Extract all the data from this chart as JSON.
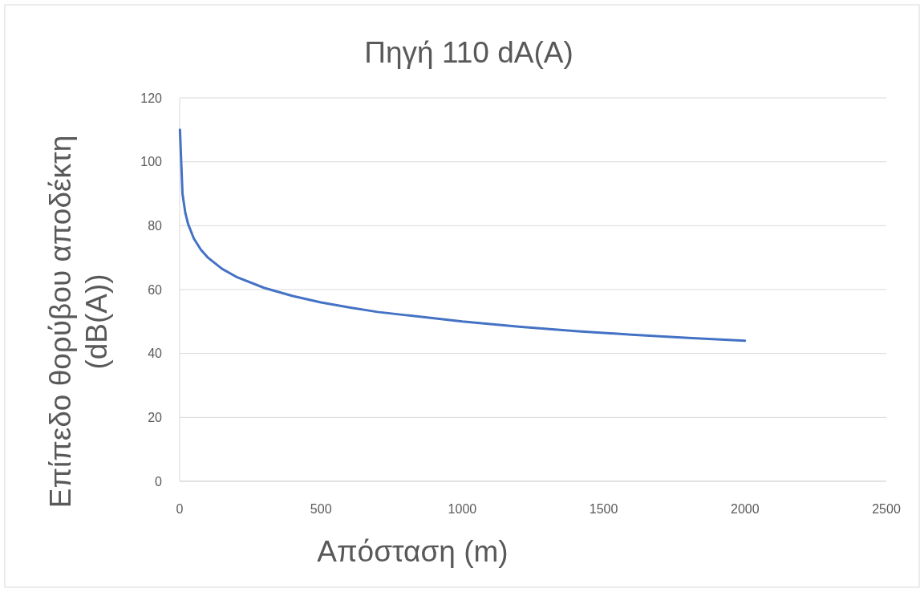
{
  "chart_data": {
    "type": "line",
    "title": "Πηγή 110 dA(A)",
    "xlabel": "Απόσταση (m)",
    "ylabel": "Επίπεδο θορύβου αποδέκτη\n(dB(A))",
    "x": [
      1,
      10,
      20,
      30,
      50,
      75,
      100,
      150,
      200,
      300,
      400,
      500,
      600,
      700,
      800,
      900,
      1000,
      1200,
      1400,
      1600,
      1800,
      2000
    ],
    "series": [
      {
        "color": "#4472c4",
        "values": [
          110,
          90,
          84,
          80.5,
          76,
          72.5,
          70,
          66.5,
          64,
          60.5,
          58,
          56,
          54.4,
          53,
          52,
          51,
          50,
          48.4,
          47,
          45.9,
          44.9,
          44
        ]
      }
    ],
    "xlim": [
      0,
      2500
    ],
    "xticks": [
      0,
      500,
      1000,
      1500,
      2000,
      2500
    ],
    "ylim": [
      0,
      120
    ],
    "yticks": [
      0,
      20,
      40,
      60,
      80,
      100,
      120
    ],
    "grid": "y",
    "marker": "none",
    "line_style": "solid"
  }
}
